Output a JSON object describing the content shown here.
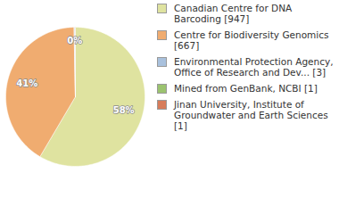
{
  "chart_data": {
    "type": "pie",
    "categories": [
      "Canadian Centre for DNA Barcoding [947]",
      "Centre for Biodiversity Genomics [667]",
      "Environmental Protection Agency, Office of Research and Dev... [3]",
      "Mined from GenBank, NCBI [1]",
      "Jinan University, Institute of Groundwater and Earth Sciences [1]"
    ],
    "values": [
      58.49,
      41.2,
      0.19,
      0.06,
      0.06
    ],
    "value_labels": [
      "58%",
      "41%",
      "0%",
      null,
      null
    ],
    "colors": [
      "#dfe3a0",
      "#f0ac70",
      "#a9c1dd",
      "#9bc36f",
      "#d77c5a"
    ],
    "data_labels": true,
    "legend": "right"
  }
}
